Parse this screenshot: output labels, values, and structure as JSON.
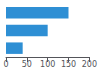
{
  "chart_data": {
    "type": "bar",
    "orientation": "horizontal",
    "categories": [
      null,
      null,
      null
    ],
    "values": [
      150,
      100,
      40
    ],
    "color": "#2e8fd4",
    "xlim": [
      0,
      200
    ],
    "xticks": [
      0,
      50,
      100,
      150,
      200
    ],
    "grid": false,
    "tick_labels": "x"
  }
}
